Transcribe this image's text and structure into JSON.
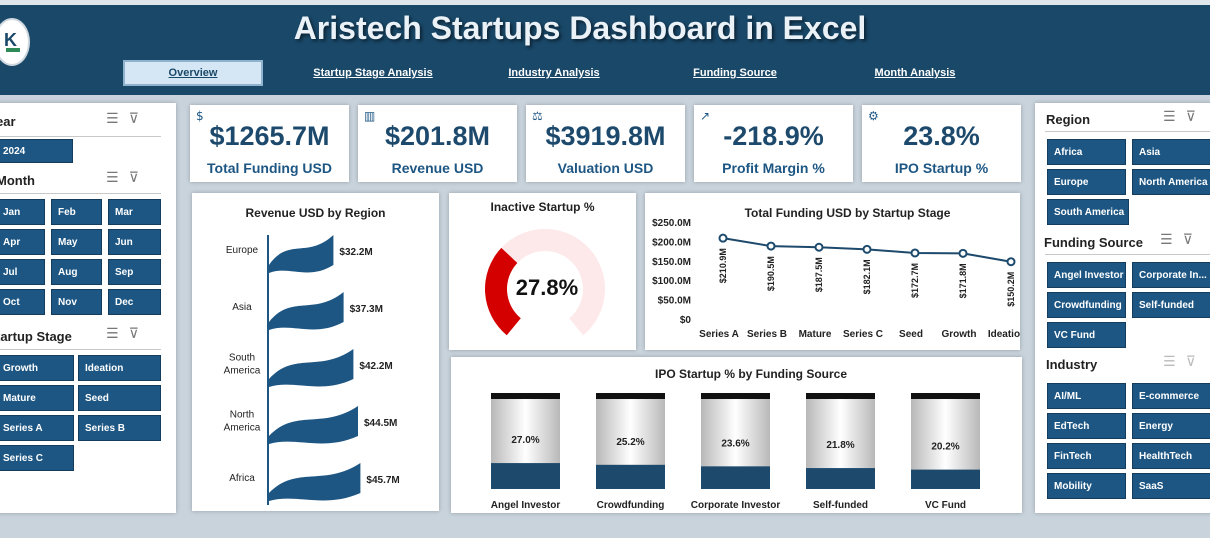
{
  "header": {
    "title": "Aristech Startups Dashboard in Excel",
    "nav": [
      "Overview",
      "Startup Stage Analysis",
      "Industry Analysis",
      "Funding Source",
      "Month Analysis"
    ]
  },
  "left": {
    "year_title": "ear",
    "years": [
      "2024"
    ],
    "month_title": "Month",
    "months": [
      "Jan",
      "Feb",
      "Mar",
      "Apr",
      "May",
      "Jun",
      "Jul",
      "Aug",
      "Sep",
      "Oct",
      "Nov",
      "Dec"
    ],
    "stage_title": "tartup Stage",
    "stages": [
      "Growth",
      "Ideation",
      "Mature",
      "Seed",
      "Series A",
      "Series B",
      "Series C"
    ]
  },
  "kpis": [
    {
      "value": "$1265.7M",
      "label": "Total Funding USD"
    },
    {
      "value": "$201.8M",
      "label": "Revenue USD"
    },
    {
      "value": "$3919.8M",
      "label": "Valuation USD"
    },
    {
      "value": "-218.9%",
      "label": "Profit Margin %"
    },
    {
      "value": "23.8%",
      "label": "IPO Startup %"
    }
  ],
  "right": {
    "region_title": "Region",
    "regions": [
      "Africa",
      "Asia",
      "Europe",
      "North America",
      "South America"
    ],
    "funding_title": "Funding Source",
    "fundings": [
      "Angel Investor",
      "Corporate In...",
      "Crowdfunding",
      "Self-funded",
      "VC Fund"
    ],
    "industry_title": "Industry",
    "industries": [
      "AI/ML",
      "E-commerce",
      "EdTech",
      "Energy",
      "FinTech",
      "HealthTech",
      "Mobility",
      "SaaS"
    ]
  },
  "chart_data": [
    {
      "type": "bar",
      "title": "Revenue USD by Region",
      "categories": [
        "Europe",
        "Asia",
        "South America",
        "North America",
        "Africa"
      ],
      "values": [
        32.2,
        37.3,
        42.2,
        44.5,
        45.7
      ],
      "labels": [
        "$32.2M",
        "$37.3M",
        "$42.2M",
        "$44.5M",
        "$45.7M"
      ],
      "unit": "M USD"
    },
    {
      "type": "pie",
      "title": "Inactive Startup %",
      "value": 27.8,
      "label": "27.8%"
    },
    {
      "type": "line",
      "title": "Total Funding USD by Startup Stage",
      "categories": [
        "Series A",
        "Series B",
        "Mature",
        "Series C",
        "Seed",
        "Growth",
        "Ideation"
      ],
      "values": [
        210.9,
        190.5,
        187.5,
        182.1,
        172.7,
        171.8,
        150.2
      ],
      "labels": [
        "$210.9M",
        "$190.5M",
        "$187.5M",
        "$182.1M",
        "$172.7M",
        "$171.8M",
        "$150.2M"
      ],
      "yticks": [
        "$250.0M",
        "$200.0M",
        "$150.0M",
        "$100.0M",
        "$50.0M",
        "$0"
      ],
      "ylim": [
        0,
        250
      ]
    },
    {
      "type": "bar",
      "title": "IPO Startup % by Funding Source",
      "categories": [
        "Angel Investor",
        "Crowdfunding",
        "Corporate Investor",
        "Self-funded",
        "VC Fund"
      ],
      "values": [
        27.0,
        25.2,
        23.6,
        21.8,
        20.2
      ],
      "labels": [
        "27.0%",
        "25.2%",
        "23.6%",
        "21.8%",
        "20.2%"
      ],
      "ylim": [
        0,
        100
      ]
    }
  ]
}
